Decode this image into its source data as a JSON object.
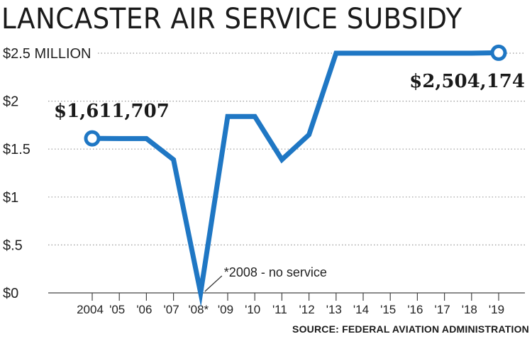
{
  "chart_data": {
    "type": "line",
    "title": "LANCASTER AIR SERVICE SUBSIDY",
    "categories": [
      "2004",
      "'05",
      "'06",
      "'07",
      "'08*",
      "'09",
      "'10",
      "'11",
      "'12",
      "'13",
      "'14",
      "'15",
      "'16",
      "'17",
      "'18",
      "'19"
    ],
    "series": [
      {
        "values": [
          1.611707,
          1.61,
          1.61,
          1.39,
          0,
          1.84,
          1.84,
          1.39,
          1.65,
          2.5,
          2.5,
          2.5,
          2.5,
          2.5,
          2.5,
          2.504174
        ]
      }
    ],
    "y_tick_labels": [
      "$0",
      "$.5",
      "$1",
      "$1.5",
      "$2",
      "$2.5 MILLION"
    ],
    "y_ticks": [
      0,
      0.5,
      1,
      1.5,
      2,
      2.5
    ],
    "ylim": [
      0,
      2.5
    ],
    "grid": "horizontal dotted",
    "color": "#1f77c4",
    "annotations": {
      "start": "$1,611,707",
      "end": "$2,504,174",
      "note": "*2008 - no service"
    },
    "source": "SOURCE: FEDERAL AVIATION ADMINISTRATION"
  }
}
